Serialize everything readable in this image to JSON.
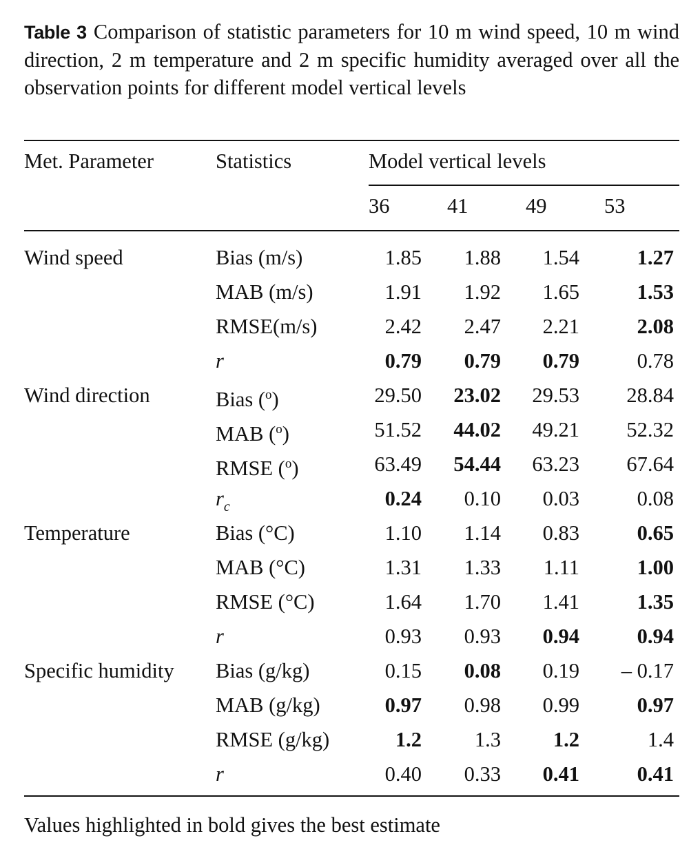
{
  "caption": {
    "label": "Table 3",
    "text": "Comparison of statistic parameters for 10 m wind speed, 10 m wind direction, 2 m temperature and 2 m specific humidity averaged over all the observation points for different model vertical levels"
  },
  "header": {
    "col_param": "Met. Parameter",
    "col_stats": "Statistics",
    "col_group": "Model vertical levels",
    "levels": [
      "36",
      "41",
      "49",
      "53"
    ]
  },
  "groups": [
    {
      "parameter": "Wind speed",
      "rows": [
        {
          "stat": "Bias (m/s)",
          "values": [
            "1.85",
            "1.88",
            "1.54",
            "1.27"
          ],
          "bold": [
            false,
            false,
            false,
            true
          ]
        },
        {
          "stat": "MAB (m/s)",
          "values": [
            "1.91",
            "1.92",
            "1.65",
            "1.53"
          ],
          "bold": [
            false,
            false,
            false,
            true
          ]
        },
        {
          "stat": "RMSE(m/s)",
          "values": [
            "2.42",
            "2.47",
            "2.21",
            "2.08"
          ],
          "bold": [
            false,
            false,
            false,
            true
          ]
        },
        {
          "stat": "r",
          "italic": true,
          "values": [
            "0.79",
            "0.79",
            "0.79",
            "0.78"
          ],
          "bold": [
            true,
            true,
            true,
            false
          ]
        }
      ]
    },
    {
      "parameter": "Wind direction",
      "rows": [
        {
          "stat": "Bias (",
          "degree": "o",
          "stat_end": ")",
          "values": [
            "29.50",
            "23.02",
            "29.53",
            "28.84"
          ],
          "bold": [
            false,
            true,
            false,
            false
          ]
        },
        {
          "stat": "MAB (",
          "degree": "o",
          "stat_end": ")",
          "values": [
            "51.52",
            "44.02",
            "49.21",
            "52.32"
          ],
          "bold": [
            false,
            true,
            false,
            false
          ]
        },
        {
          "stat": "RMSE (",
          "degree": "o",
          "stat_end": ")",
          "values": [
            "63.49",
            "54.44",
            "63.23",
            "67.64"
          ],
          "bold": [
            false,
            true,
            false,
            false
          ]
        },
        {
          "stat": "r",
          "italic": true,
          "subscript": "c",
          "values": [
            "0.24",
            "0.10",
            "0.03",
            "0.08"
          ],
          "bold": [
            true,
            false,
            false,
            false
          ]
        }
      ]
    },
    {
      "parameter": "Temperature",
      "rows": [
        {
          "stat": "Bias (°C)",
          "values": [
            "1.10",
            "1.14",
            "0.83",
            "0.65"
          ],
          "bold": [
            false,
            false,
            false,
            true
          ]
        },
        {
          "stat": "MAB (°C)",
          "values": [
            "1.31",
            "1.33",
            "1.11",
            "1.00"
          ],
          "bold": [
            false,
            false,
            false,
            true
          ]
        },
        {
          "stat": "RMSE (°C)",
          "values": [
            "1.64",
            "1.70",
            "1.41",
            "1.35"
          ],
          "bold": [
            false,
            false,
            false,
            true
          ]
        },
        {
          "stat": "r",
          "italic": true,
          "values": [
            "0.93",
            "0.93",
            "0.94",
            "0.94"
          ],
          "bold": [
            false,
            false,
            true,
            true
          ]
        }
      ]
    },
    {
      "parameter": "Specific humidity",
      "rows": [
        {
          "stat": "Bias (g/kg)",
          "values": [
            "0.15",
            "0.08",
            "0.19",
            "– 0.17"
          ],
          "bold": [
            false,
            true,
            false,
            false
          ]
        },
        {
          "stat": "MAB (g/kg)",
          "values": [
            "0.97",
            "0.98",
            "0.99",
            "0.97"
          ],
          "bold": [
            true,
            false,
            false,
            true
          ]
        },
        {
          "stat": "RMSE (g/kg)",
          "values": [
            "1.2",
            "1.3",
            "1.2",
            "1.4"
          ],
          "bold": [
            true,
            false,
            true,
            false
          ]
        },
        {
          "stat": "r",
          "italic": true,
          "values": [
            "0.40",
            "0.33",
            "0.41",
            "0.41"
          ],
          "bold": [
            false,
            false,
            true,
            true
          ]
        }
      ]
    }
  ],
  "footnote": "Values highlighted in bold gives the best estimate"
}
